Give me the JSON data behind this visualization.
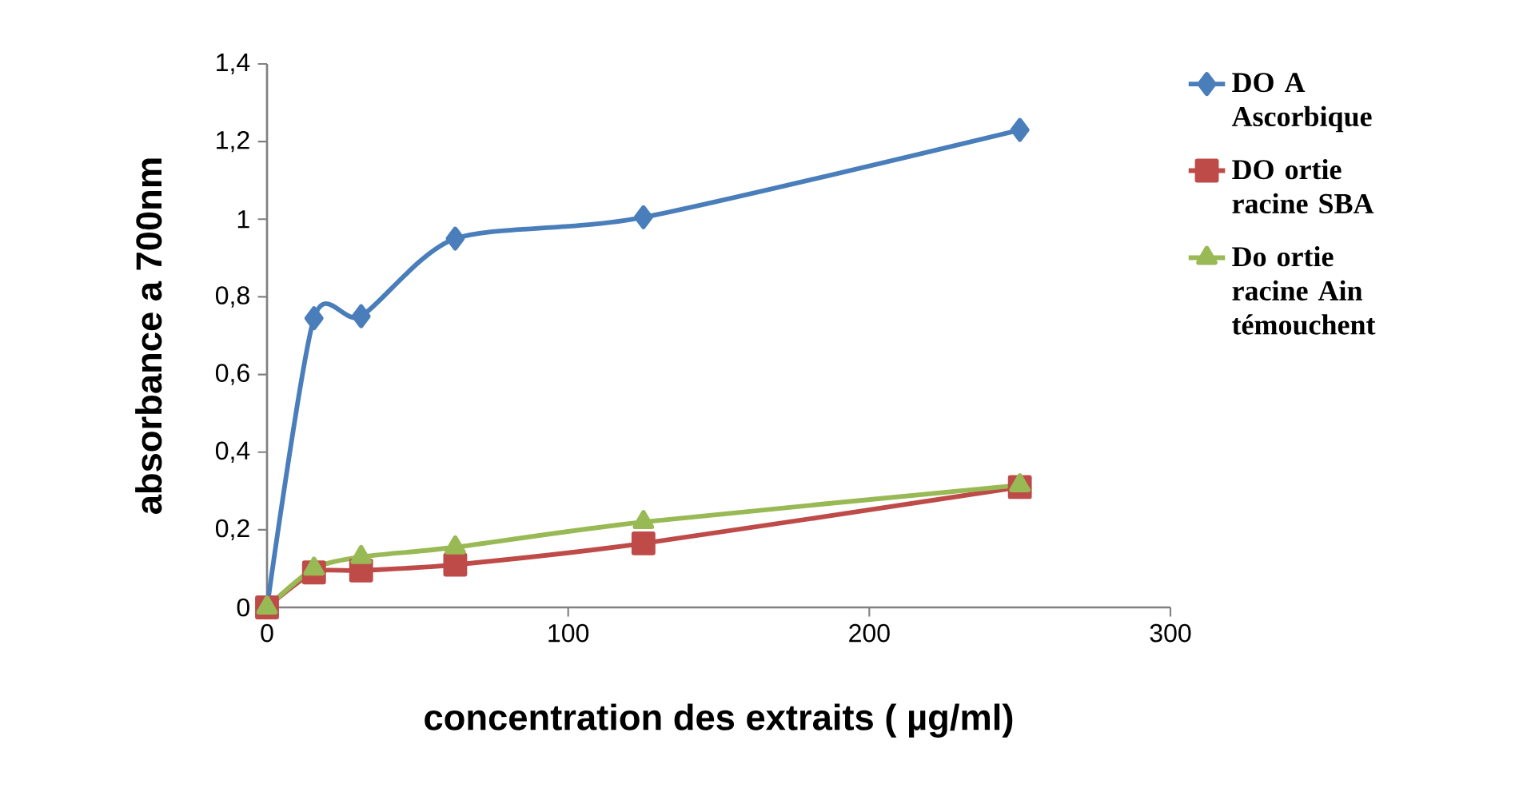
{
  "chart_data": {
    "type": "line",
    "xlabel": "concentration des extraits ( µg/ml)",
    "ylabel": "absorbance a 700nm",
    "x": [
      0,
      15.6,
      31.25,
      62.5,
      125,
      250
    ],
    "series": [
      {
        "name": "DO A Ascorbique",
        "color": "#4a7ebb",
        "marker": "diamond",
        "values": [
          0,
          0.745,
          0.75,
          0.95,
          1.005,
          1.23
        ]
      },
      {
        "name": "DO  ortie racine SBA",
        "color": "#be4b48",
        "marker": "square",
        "values": [
          0,
          0.09,
          0.095,
          0.11,
          0.165,
          0.31
        ]
      },
      {
        "name": "Do ortie racine Ain témouchent",
        "color": "#98b954",
        "marker": "triangle",
        "values": [
          0,
          0.1,
          0.13,
          0.155,
          0.22,
          0.315
        ]
      }
    ],
    "xlim": [
      0,
      300
    ],
    "xticks": [
      0,
      100,
      200,
      300
    ],
    "ylim": [
      0,
      1.4
    ],
    "yticks": [
      0,
      {
        "value": 0.2,
        "label": "0,2"
      },
      {
        "value": 0.4,
        "label": "0,4"
      },
      {
        "value": 0.6,
        "label": "0,6"
      },
      {
        "value": 0.8,
        "label": "0,8"
      },
      1,
      {
        "value": 1.2,
        "label": "1,2"
      },
      {
        "value": 1.4,
        "label": "1,4"
      }
    ],
    "grid": false,
    "legend": "right",
    "line_style": "solid"
  }
}
